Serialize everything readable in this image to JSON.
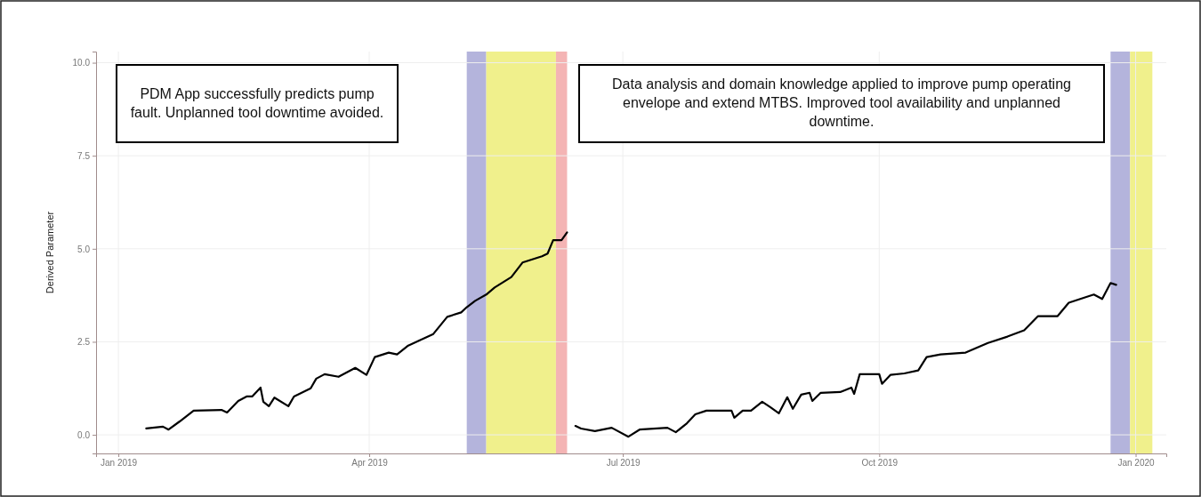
{
  "chart_data": {
    "type": "line",
    "ylabel": "Derived Parameter",
    "annotations": [
      "PDM App successfully predicts pump fault. Unplanned tool downtime avoided.",
      "Data analysis and domain knowledge applied to improve pump operating envelope and extend MTBS. Improved tool availability and unplanned downtime."
    ],
    "xlim": [
      "2018-12-24",
      "2020-01-12"
    ],
    "xticks": [
      {
        "value": "2019-01-01",
        "label": "Jan 2019"
      },
      {
        "value": "2019-04-01",
        "label": "Apr 2019"
      },
      {
        "value": "2019-07-01",
        "label": "Jul 2019"
      },
      {
        "value": "2019-10-01",
        "label": "Oct 2019"
      },
      {
        "value": "2020-01-01",
        "label": "Jan 2020"
      }
    ],
    "ylim": [
      -0.5,
      10.3
    ],
    "yticks": [
      {
        "value": 0,
        "label": "0.0"
      },
      {
        "value": 2.5,
        "label": "2.5"
      },
      {
        "value": 5,
        "label": "5.0"
      },
      {
        "value": 7.5,
        "label": "7.5"
      },
      {
        "value": 10,
        "label": "10.0"
      }
    ],
    "grid": true,
    "marker": "none",
    "line_style": "solid",
    "bands": [
      {
        "axis": "x",
        "from": "2019-05-06",
        "to": "2019-05-13",
        "color": "#b4b4dc"
      },
      {
        "axis": "x",
        "from": "2019-05-13",
        "to": "2019-06-07",
        "color": "#f0f08c"
      },
      {
        "axis": "x",
        "from": "2019-06-07",
        "to": "2019-06-11",
        "color": "#f4b4b4"
      },
      {
        "axis": "x",
        "from": "2019-12-23",
        "to": "2019-12-30",
        "color": "#b4b4dc"
      },
      {
        "axis": "x",
        "from": "2019-12-30",
        "to": "2020-01-07",
        "color": "#f0f08c"
      }
    ],
    "series": [
      {
        "color": "#000000",
        "x": [
          "2019-01-11",
          "2019-01-17",
          "2019-01-19",
          "2019-01-23",
          "2019-01-28",
          "2019-02-07",
          "2019-02-09",
          "2019-02-13",
          "2019-02-16",
          "2019-02-18",
          "2019-02-21",
          "2019-02-22",
          "2019-02-24",
          "2019-02-26",
          "2019-03-03",
          "2019-03-05",
          "2019-03-11",
          "2019-03-13",
          "2019-03-16",
          "2019-03-21",
          "2019-03-27",
          "2019-03-31",
          "2019-04-03",
          "2019-04-08",
          "2019-04-11",
          "2019-04-15",
          "2019-04-20",
          "2019-04-24",
          "2019-04-29",
          "2019-05-04",
          "2019-05-06",
          "2019-05-09",
          "2019-05-13",
          "2019-05-16",
          "2019-05-22",
          "2019-05-26",
          "2019-06-02",
          "2019-06-04",
          "2019-06-06",
          "2019-06-09",
          "2019-06-11",
          "2019-06-12",
          "2019-06-14",
          "2019-06-16",
          "2019-06-21",
          "2019-06-27",
          "2019-07-03",
          "2019-07-07",
          "2019-07-17",
          "2019-07-20",
          "2019-07-24",
          "2019-07-27",
          "2019-07-31",
          "2019-08-09",
          "2019-08-10",
          "2019-08-13",
          "2019-08-16",
          "2019-08-20",
          "2019-08-23",
          "2019-08-26",
          "2019-08-29",
          "2019-08-31",
          "2019-09-03",
          "2019-09-06",
          "2019-09-07",
          "2019-09-10",
          "2019-09-17",
          "2019-09-21",
          "2019-09-22",
          "2019-09-24",
          "2019-10-01",
          "2019-10-02",
          "2019-10-05",
          "2019-10-10",
          "2019-10-15",
          "2019-10-18",
          "2019-10-23",
          "2019-11-01",
          "2019-11-09",
          "2019-11-16",
          "2019-11-22",
          "2019-11-27",
          "2019-12-04",
          "2019-12-08",
          "2019-12-17",
          "2019-12-20",
          "2019-12-23",
          "2019-12-25"
        ],
        "values": [
          0.17,
          0.22,
          0.14,
          0.36,
          0.65,
          0.67,
          0.6,
          0.91,
          1.03,
          1.03,
          1.27,
          0.89,
          0.77,
          1.0,
          0.77,
          1.03,
          1.25,
          1.51,
          1.63,
          1.56,
          1.8,
          1.61,
          2.09,
          2.21,
          2.16,
          2.4,
          2.57,
          2.71,
          3.17,
          3.29,
          3.43,
          3.6,
          3.77,
          3.96,
          4.24,
          4.63,
          4.8,
          4.87,
          5.23,
          5.23,
          5.44,
          null,
          0.24,
          0.17,
          0.1,
          0.19,
          -0.05,
          0.14,
          0.19,
          0.07,
          0.31,
          0.55,
          0.65,
          0.65,
          0.46,
          0.65,
          0.65,
          0.89,
          0.74,
          0.58,
          1.01,
          0.7,
          1.08,
          1.13,
          0.91,
          1.13,
          1.15,
          1.27,
          1.1,
          1.63,
          1.63,
          1.37,
          1.61,
          1.65,
          1.73,
          2.09,
          2.16,
          2.21,
          2.47,
          2.64,
          2.81,
          3.19,
          3.19,
          3.55,
          3.77,
          3.65,
          4.08,
          4.03
        ]
      }
    ]
  }
}
